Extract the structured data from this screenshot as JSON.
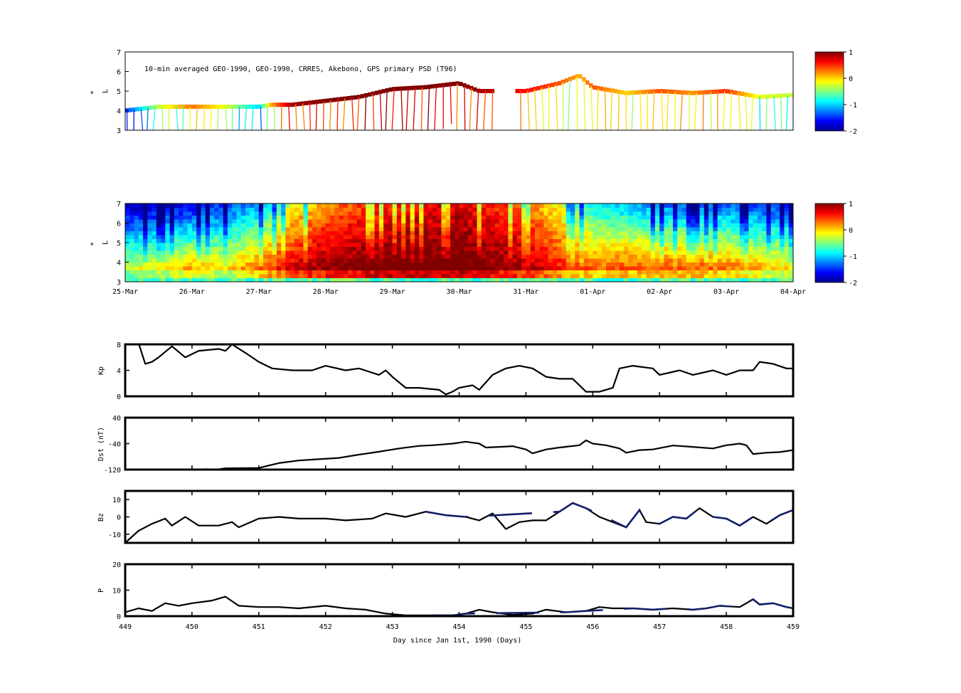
{
  "figure": {
    "top_title": "10-min averaged GEO-1990, GEO-1990, CRRES, Akebono, GPS  primary PSD (T96)",
    "ylabel_lstar": "L*",
    "ylabel_lstar_prefix": "*",
    "ylabel_lstar_letter": "L",
    "xlabel_bottom": "Day since Jan 1st, 1990 (Days)"
  },
  "chart_data": [
    {
      "id": "psd_observations",
      "type": "heatmap",
      "title": "10-min averaged GEO-1990, GEO-1990, CRRES, Akebono, GPS  primary PSD (T96)",
      "ylabel": "L*",
      "ylim": [
        3,
        7
      ],
      "yticks": [
        "3",
        "4",
        "5",
        "6",
        "7"
      ],
      "xlim": [
        449,
        459
      ],
      "colorbar": {
        "range": [
          -2,
          1
        ],
        "ticks": [
          "1",
          "0",
          "-1",
          "-2"
        ]
      },
      "colormap": [
        "#00008f",
        "#0000ff",
        "#0080ff",
        "#00ffff",
        "#80ff80",
        "#ffff00",
        "#ff8000",
        "#ff0000",
        "#800000"
      ],
      "track": [
        [
          449.0,
          4.0,
          -1.5
        ],
        [
          449.5,
          4.2,
          -0.3
        ],
        [
          450.0,
          4.2,
          0.3
        ],
        [
          450.5,
          4.2,
          -0.2
        ],
        [
          451.0,
          4.2,
          -1.0
        ],
        [
          451.2,
          4.3,
          0.2
        ],
        [
          451.5,
          4.3,
          0.9
        ],
        [
          452.0,
          4.5,
          1.0
        ],
        [
          452.5,
          4.7,
          1.0
        ],
        [
          453.0,
          5.1,
          1.0
        ],
        [
          453.5,
          5.2,
          1.0
        ],
        [
          454.0,
          5.4,
          1.0
        ],
        [
          454.3,
          5.0,
          0.9
        ],
        [
          455.0,
          5.0,
          0.6
        ],
        [
          455.5,
          5.4,
          0.4
        ],
        [
          455.8,
          5.8,
          0.1
        ],
        [
          456.0,
          5.2,
          0.4
        ],
        [
          456.5,
          4.9,
          0.0
        ],
        [
          457.0,
          5.0,
          0.4
        ],
        [
          457.5,
          4.9,
          0.2
        ],
        [
          458.0,
          5.0,
          0.5
        ],
        [
          458.5,
          4.7,
          -0.2
        ],
        [
          459.0,
          4.8,
          -0.3
        ]
      ]
    },
    {
      "id": "psd_reanalysis",
      "type": "heatmap",
      "ylabel": "L*",
      "ylim": [
        3,
        7
      ],
      "yticks": [
        "3",
        "4",
        "5",
        "6",
        "7"
      ],
      "xlim": [
        449,
        459
      ],
      "xticks": [
        "25-Mar",
        "26-Mar",
        "27-Mar",
        "28-Mar",
        "29-Mar",
        "30-Mar",
        "31-Mar",
        "01-Apr",
        "02-Apr",
        "03-Apr",
        "04-Apr"
      ],
      "colorbar": {
        "range": [
          -2,
          1
        ],
        "ticks": [
          "1",
          "0",
          "-1",
          "-2"
        ]
      },
      "colormap": [
        "#00008f",
        "#0000ff",
        "#0080ff",
        "#00ffff",
        "#80ff80",
        "#ffff00",
        "#ff8000",
        "#ff0000",
        "#800000"
      ],
      "outer_level": [
        [
          449.0,
          -1.9
        ],
        [
          450.0,
          -1.7
        ],
        [
          451.0,
          -1.2
        ],
        [
          451.5,
          -0.2
        ],
        [
          452.0,
          0.2
        ],
        [
          452.5,
          0.4
        ],
        [
          453.0,
          0.5
        ],
        [
          454.0,
          0.7
        ],
        [
          454.5,
          0.5
        ],
        [
          455.0,
          0.3
        ],
        [
          455.5,
          -0.2
        ],
        [
          456.0,
          -0.9
        ],
        [
          457.0,
          -1.3
        ],
        [
          458.0,
          -1.4
        ],
        [
          459.0,
          -1.5
        ]
      ],
      "inner_level": [
        [
          449.0,
          -0.2
        ],
        [
          450.0,
          0.2
        ],
        [
          450.5,
          0.0
        ],
        [
          451.0,
          0.4
        ],
        [
          451.5,
          0.8
        ],
        [
          452.0,
          1.0
        ],
        [
          453.0,
          1.2
        ],
        [
          454.0,
          1.2
        ],
        [
          455.0,
          0.9
        ],
        [
          455.5,
          0.6
        ],
        [
          456.0,
          0.4
        ],
        [
          457.0,
          0.5
        ],
        [
          458.0,
          0.4
        ],
        [
          459.0,
          0.0
        ]
      ]
    },
    {
      "id": "kp",
      "type": "line",
      "ylabel": "Kp",
      "ylim": [
        0,
        8
      ],
      "yticks": [
        "0",
        "4",
        "8"
      ],
      "xlim": [
        449,
        459
      ],
      "series": [
        {
          "values": [
            [
              449.0,
              8.2
            ],
            [
              449.2,
              8.2
            ],
            [
              449.3,
              5.0
            ],
            [
              449.4,
              5.3
            ],
            [
              449.5,
              6.0
            ],
            [
              449.7,
              7.7
            ],
            [
              449.9,
              6.0
            ],
            [
              450.1,
              7.0
            ],
            [
              450.4,
              7.3
            ],
            [
              450.5,
              7.0
            ],
            [
              450.6,
              8.0
            ],
            [
              450.8,
              6.7
            ],
            [
              451.0,
              5.3
            ],
            [
              451.2,
              4.3
            ],
            [
              451.5,
              4.0
            ],
            [
              451.8,
              4.0
            ],
            [
              452.0,
              4.7
            ],
            [
              452.3,
              4.0
            ],
            [
              452.5,
              4.3
            ],
            [
              452.8,
              3.3
            ],
            [
              452.9,
              4.0
            ],
            [
              453.0,
              3.0
            ],
            [
              453.2,
              1.3
            ],
            [
              453.4,
              1.3
            ],
            [
              453.7,
              1.0
            ],
            [
              453.8,
              0.3
            ],
            [
              453.9,
              0.7
            ],
            [
              454.0,
              1.3
            ],
            [
              454.2,
              1.7
            ],
            [
              454.3,
              1.0
            ],
            [
              454.5,
              3.3
            ],
            [
              454.7,
              4.3
            ],
            [
              454.9,
              4.7
            ],
            [
              455.1,
              4.3
            ],
            [
              455.3,
              3.0
            ],
            [
              455.5,
              2.7
            ],
            [
              455.7,
              2.7
            ],
            [
              455.9,
              0.7
            ],
            [
              456.1,
              0.7
            ],
            [
              456.3,
              1.3
            ],
            [
              456.4,
              4.3
            ],
            [
              456.6,
              4.7
            ],
            [
              456.9,
              4.3
            ],
            [
              457.0,
              3.3
            ],
            [
              457.3,
              4.0
            ],
            [
              457.5,
              3.3
            ],
            [
              457.8,
              4.0
            ],
            [
              458.0,
              3.3
            ],
            [
              458.2,
              4.0
            ],
            [
              458.4,
              4.0
            ],
            [
              458.5,
              5.3
            ],
            [
              458.7,
              5.0
            ],
            [
              458.9,
              4.3
            ],
            [
              459.0,
              4.3
            ]
          ]
        }
      ]
    },
    {
      "id": "dst",
      "type": "line",
      "ylabel": "Dst (nT)",
      "ylim": [
        -120,
        40
      ],
      "yticks": [
        "-120",
        "-40",
        "40"
      ],
      "xlim": [
        449,
        459
      ],
      "series": [
        {
          "values": [
            [
              450.2,
              -118
            ],
            [
              450.3,
              -122
            ],
            [
              450.5,
              -116
            ],
            [
              451.0,
              -115
            ],
            [
              451.3,
              -100
            ],
            [
              451.6,
              -92
            ],
            [
              451.9,
              -88
            ],
            [
              452.2,
              -84
            ],
            [
              452.5,
              -74
            ],
            [
              452.8,
              -65
            ],
            [
              453.1,
              -55
            ],
            [
              453.4,
              -47
            ],
            [
              453.6,
              -45
            ],
            [
              453.9,
              -40
            ],
            [
              454.1,
              -34
            ],
            [
              454.3,
              -40
            ],
            [
              454.4,
              -52
            ],
            [
              454.6,
              -50
            ],
            [
              454.8,
              -48
            ],
            [
              455.0,
              -58
            ],
            [
              455.1,
              -70
            ],
            [
              455.3,
              -58
            ],
            [
              455.5,
              -52
            ],
            [
              455.8,
              -45
            ],
            [
              455.9,
              -30
            ],
            [
              456.0,
              -40
            ],
            [
              456.2,
              -45
            ],
            [
              456.4,
              -55
            ],
            [
              456.5,
              -68
            ],
            [
              456.7,
              -60
            ],
            [
              456.9,
              -58
            ],
            [
              457.2,
              -46
            ],
            [
              457.5,
              -50
            ],
            [
              457.8,
              -55
            ],
            [
              458.0,
              -45
            ],
            [
              458.2,
              -40
            ],
            [
              458.3,
              -45
            ],
            [
              458.4,
              -72
            ],
            [
              458.6,
              -68
            ],
            [
              458.8,
              -66
            ],
            [
              459.0,
              -60
            ]
          ]
        }
      ]
    },
    {
      "id": "bz",
      "type": "line",
      "ylabel": "Bz",
      "ylim": [
        -15,
        15
      ],
      "yticks": [
        "-10",
        "0",
        "10"
      ],
      "xlim": [
        449,
        459
      ],
      "series": [
        {
          "values": [
            [
              449.0,
              -15
            ],
            [
              449.2,
              -8
            ],
            [
              449.4,
              -4
            ],
            [
              449.6,
              -1
            ],
            [
              449.7,
              -5
            ],
            [
              449.9,
              0
            ],
            [
              450.1,
              -5
            ],
            [
              450.4,
              -5
            ],
            [
              450.6,
              -3
            ],
            [
              450.7,
              -6
            ],
            [
              451.0,
              -1
            ],
            [
              451.3,
              0
            ],
            [
              451.6,
              -1
            ],
            [
              452.0,
              -1
            ],
            [
              452.3,
              -2
            ],
            [
              452.7,
              -1
            ],
            [
              452.9,
              2
            ],
            [
              453.2,
              0
            ],
            [
              453.5,
              3
            ],
            [
              453.8,
              1
            ],
            [
              454.1,
              0
            ],
            [
              454.3,
              -2
            ],
            [
              454.5,
              2
            ],
            [
              454.7,
              -7
            ],
            [
              454.9,
              -3
            ],
            [
              455.1,
              -2
            ],
            [
              455.3,
              -2
            ],
            [
              455.5,
              3
            ],
            [
              455.7,
              8
            ],
            [
              455.9,
              5
            ],
            [
              456.1,
              0
            ],
            [
              456.3,
              -3
            ],
            [
              456.5,
              -6
            ],
            [
              456.7,
              4
            ],
            [
              456.8,
              -3
            ],
            [
              457.0,
              -4
            ],
            [
              457.2,
              0
            ],
            [
              457.4,
              -1
            ],
            [
              457.6,
              5
            ],
            [
              457.8,
              0
            ],
            [
              458.0,
              -1
            ],
            [
              458.2,
              -5
            ],
            [
              458.4,
              0
            ],
            [
              458.6,
              -4
            ],
            [
              458.8,
              1
            ],
            [
              459.0,
              4
            ]
          ]
        }
      ]
    },
    {
      "id": "p",
      "type": "line",
      "ylabel": "P",
      "ylim": [
        0,
        20
      ],
      "yticks": [
        "0",
        "10",
        "20"
      ],
      "xlim": [
        449,
        459
      ],
      "xticks": [
        "449",
        "450",
        "451",
        "452",
        "453",
        "454",
        "455",
        "456",
        "457",
        "458",
        "459"
      ],
      "xlabel": "Day since Jan 1st, 1990 (Days)",
      "series": [
        {
          "values": [
            [
              449.0,
              1.5
            ],
            [
              449.2,
              3
            ],
            [
              449.4,
              2
            ],
            [
              449.6,
              5
            ],
            [
              449.8,
              4
            ],
            [
              450.0,
              5
            ],
            [
              450.3,
              6
            ],
            [
              450.5,
              7.5
            ],
            [
              450.7,
              4
            ],
            [
              451.0,
              3.5
            ],
            [
              451.3,
              3.5
            ],
            [
              451.6,
              3
            ],
            [
              452.0,
              4
            ],
            [
              452.3,
              3
            ],
            [
              452.6,
              2.5
            ],
            [
              452.9,
              1
            ],
            [
              453.2,
              0.3
            ],
            [
              453.6,
              0.3
            ],
            [
              453.9,
              0.3
            ],
            [
              454.1,
              1
            ],
            [
              454.3,
              2.5
            ],
            [
              454.5,
              1.5
            ],
            [
              454.8,
              0.5
            ],
            [
              455.1,
              1
            ],
            [
              455.3,
              2.5
            ],
            [
              455.6,
              1.5
            ],
            [
              455.9,
              2
            ],
            [
              456.1,
              3.5
            ],
            [
              456.3,
              3
            ],
            [
              456.6,
              3
            ],
            [
              456.9,
              2.5
            ],
            [
              457.2,
              3
            ],
            [
              457.5,
              2.5
            ],
            [
              457.7,
              3
            ],
            [
              457.9,
              4
            ],
            [
              458.2,
              3.5
            ],
            [
              458.4,
              6.5
            ],
            [
              458.5,
              4.5
            ],
            [
              458.7,
              5
            ],
            [
              458.9,
              3.5
            ],
            [
              459.0,
              3
            ]
          ]
        }
      ]
    }
  ]
}
